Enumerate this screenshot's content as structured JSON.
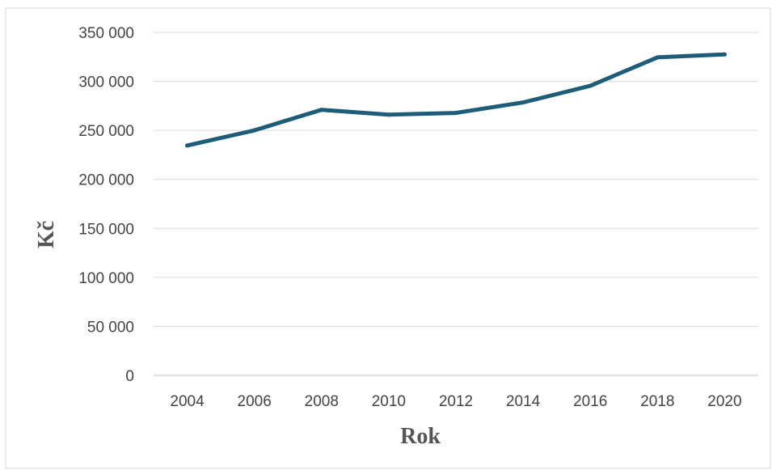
{
  "chart_data": {
    "type": "line",
    "title": "",
    "xlabel": "Rok",
    "ylabel": "Kč",
    "x": [
      "2004",
      "2006",
      "2008",
      "2010",
      "2012",
      "2014",
      "2016",
      "2018",
      "2020"
    ],
    "series": [
      {
        "values": [
          234500,
          250000,
          271000,
          266000,
          267800,
          278500,
          295500,
          324500,
          327500
        ]
      }
    ],
    "ylim": [
      0,
      350000
    ],
    "yticks": [
      0,
      50000,
      100000,
      150000,
      200000,
      250000,
      300000,
      350000
    ],
    "ytick_labels": [
      "0",
      "50 000",
      "100 000",
      "150 000",
      "200 000",
      "250 000",
      "300 000",
      "350 000"
    ],
    "grid": true,
    "legend": "none",
    "colors": {
      "line": "#1d5d7a",
      "grid": "#d9d9d9",
      "axis": "#bfbfbf",
      "border": "#d9d9d9"
    }
  }
}
